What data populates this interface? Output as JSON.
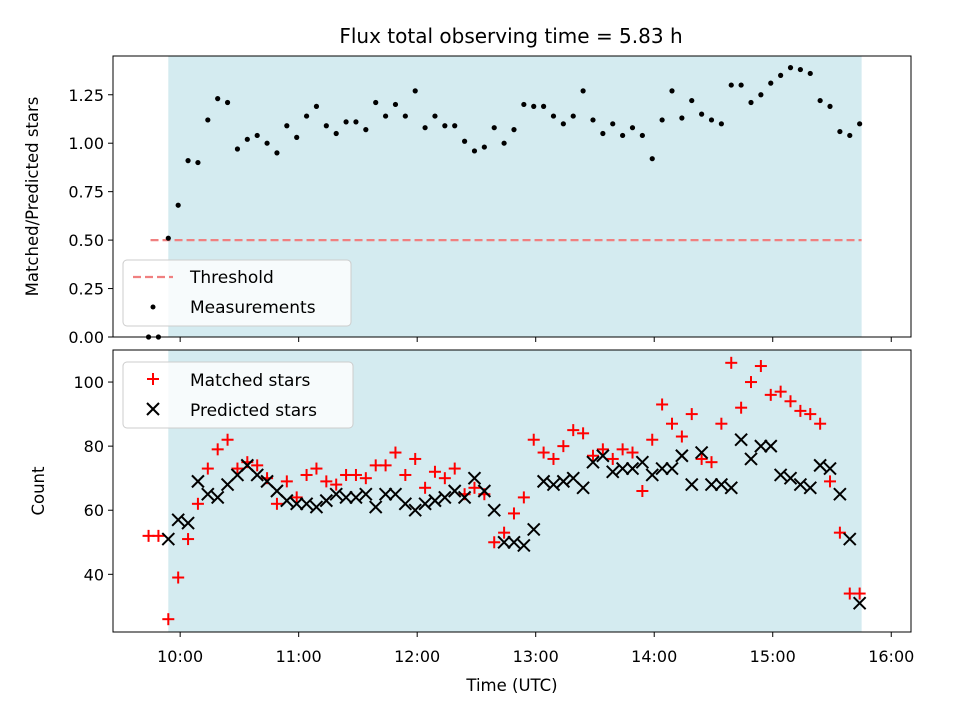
{
  "chart_data": [
    {
      "type": "scatter",
      "title": "Flux total observing time = 5.83 h",
      "xlabel": "",
      "ylabel": "Matched/Predicted stars",
      "xlim": [
        "09:26",
        "16:10"
      ],
      "ylim": [
        0,
        1.45
      ],
      "yticks": [
        "0.00",
        "0.25",
        "0.50",
        "0.75",
        "1.00",
        "1.25"
      ],
      "shaded_interval": [
        "09:54",
        "15:45"
      ],
      "shade_color": "#d4ebf0",
      "legend": [
        "Threshold",
        "Measurements"
      ],
      "legend_position": "lower-left",
      "threshold": {
        "name": "Threshold",
        "value": 0.5,
        "x": [
          "09:45",
          "15:45"
        ],
        "color": "#f08080"
      },
      "series": [
        {
          "name": "Measurements",
          "color": "#000000",
          "x": [
            "09:44",
            "09:49",
            "09:54",
            "09:59",
            "10:04",
            "10:09",
            "10:14",
            "10:19",
            "10:24",
            "10:29",
            "10:34",
            "10:39",
            "10:44",
            "10:49",
            "10:54",
            "10:59",
            "11:04",
            "11:09",
            "11:14",
            "11:19",
            "11:24",
            "11:29",
            "11:34",
            "11:39",
            "11:44",
            "11:49",
            "11:54",
            "11:59",
            "12:04",
            "12:09",
            "12:14",
            "12:19",
            "12:24",
            "12:29",
            "12:34",
            "12:39",
            "12:44",
            "12:49",
            "12:54",
            "12:59",
            "13:04",
            "13:09",
            "13:14",
            "13:19",
            "13:24",
            "13:29",
            "13:34",
            "13:39",
            "13:44",
            "13:49",
            "13:54",
            "13:59",
            "14:04",
            "14:09",
            "14:14",
            "14:19",
            "14:24",
            "14:29",
            "14:34",
            "14:39",
            "14:44",
            "14:49",
            "14:54",
            "14:59",
            "15:04",
            "15:09",
            "15:14",
            "15:19",
            "15:24",
            "15:29",
            "15:34",
            "15:39",
            "15:44"
          ],
          "y": [
            0.0,
            0.0,
            0.51,
            0.68,
            0.91,
            0.9,
            1.12,
            1.23,
            1.21,
            0.97,
            1.02,
            1.04,
            1.0,
            0.95,
            1.09,
            1.03,
            1.14,
            1.19,
            1.09,
            1.05,
            1.11,
            1.11,
            1.07,
            1.21,
            1.14,
            1.2,
            1.14,
            1.27,
            1.08,
            1.14,
            1.09,
            1.09,
            1.01,
            0.96,
            0.98,
            1.08,
            1.0,
            1.07,
            1.2,
            1.19,
            1.19,
            1.14,
            1.1,
            1.14,
            1.27,
            1.12,
            1.05,
            1.1,
            1.04,
            1.08,
            1.04,
            0.92,
            1.12,
            1.27,
            1.13,
            1.22,
            1.15,
            1.12,
            1.1,
            1.3,
            1.3,
            1.21,
            1.25,
            1.31,
            1.35,
            1.39,
            1.38,
            1.36,
            1.22,
            1.19,
            1.06,
            1.04,
            1.1
          ]
        }
      ]
    },
    {
      "type": "scatter",
      "title": "",
      "xlabel": "Time (UTC)",
      "ylabel": "Count",
      "xlim": [
        "09:26",
        "16:10"
      ],
      "ylim": [
        22,
        110
      ],
      "yticks": [
        "40",
        "60",
        "80",
        "100"
      ],
      "xticks": [
        "10:00",
        "11:00",
        "12:00",
        "13:00",
        "14:00",
        "15:00",
        "16:00"
      ],
      "shaded_interval": [
        "09:54",
        "15:45"
      ],
      "shade_color": "#d4ebf0",
      "legend": [
        "Matched stars",
        "Predicted stars"
      ],
      "legend_position": "top-left",
      "series": [
        {
          "name": "Matched stars",
          "marker": "plus",
          "color": "#ff0000",
          "x": [
            "09:44",
            "09:49",
            "09:54",
            "09:59",
            "10:04",
            "10:09",
            "10:14",
            "10:19",
            "10:24",
            "10:29",
            "10:34",
            "10:39",
            "10:44",
            "10:49",
            "10:54",
            "10:59",
            "11:04",
            "11:09",
            "11:14",
            "11:19",
            "11:24",
            "11:29",
            "11:34",
            "11:39",
            "11:44",
            "11:49",
            "11:54",
            "11:59",
            "12:04",
            "12:09",
            "12:14",
            "12:19",
            "12:24",
            "12:29",
            "12:34",
            "12:39",
            "12:44",
            "12:49",
            "12:54",
            "12:59",
            "13:04",
            "13:09",
            "13:14",
            "13:19",
            "13:24",
            "13:29",
            "13:34",
            "13:39",
            "13:44",
            "13:49",
            "13:54",
            "13:59",
            "14:04",
            "14:09",
            "14:14",
            "14:19",
            "14:24",
            "14:29",
            "14:34",
            "14:39",
            "14:44",
            "14:49",
            "14:54",
            "14:59",
            "15:04",
            "15:09",
            "15:14",
            "15:19",
            "15:24",
            "15:29",
            "15:34",
            "15:39",
            "15:44"
          ],
          "y": [
            52,
            52,
            26,
            39,
            51,
            62,
            73,
            79,
            82,
            73,
            75,
            74,
            70,
            62,
            69,
            64,
            71,
            73,
            69,
            68,
            71,
            71,
            70,
            74,
            74,
            78,
            71,
            76,
            67,
            72,
            70,
            73,
            65,
            67,
            65,
            50,
            53,
            59,
            64,
            82,
            78,
            76,
            80,
            85,
            84,
            77,
            79,
            76,
            79,
            78,
            66,
            82,
            93,
            87,
            83,
            90,
            76,
            75,
            87,
            106,
            92,
            100,
            105,
            96,
            97,
            94,
            91,
            90,
            87,
            69,
            53,
            34,
            34
          ]
        },
        {
          "name": "Predicted stars",
          "marker": "x",
          "color": "#000000",
          "x": [
            "09:54",
            "09:59",
            "10:04",
            "10:09",
            "10:14",
            "10:19",
            "10:24",
            "10:29",
            "10:34",
            "10:39",
            "10:44",
            "10:49",
            "10:54",
            "10:59",
            "11:04",
            "11:09",
            "11:14",
            "11:19",
            "11:24",
            "11:29",
            "11:34",
            "11:39",
            "11:44",
            "11:49",
            "11:54",
            "11:59",
            "12:04",
            "12:09",
            "12:14",
            "12:19",
            "12:24",
            "12:29",
            "12:34",
            "12:39",
            "12:44",
            "12:49",
            "12:54",
            "12:59",
            "13:04",
            "13:09",
            "13:14",
            "13:19",
            "13:24",
            "13:29",
            "13:34",
            "13:39",
            "13:44",
            "13:49",
            "13:54",
            "13:59",
            "14:04",
            "14:09",
            "14:14",
            "14:19",
            "14:24",
            "14:29",
            "14:34",
            "14:39",
            "14:44",
            "14:49",
            "14:54",
            "14:59",
            "15:04",
            "15:09",
            "15:14",
            "15:19",
            "15:24",
            "15:29",
            "15:34",
            "15:39",
            "15:44"
          ],
          "y": [
            51,
            57,
            56,
            69,
            65,
            64,
            68,
            71,
            74,
            71,
            69,
            66,
            63,
            62,
            62,
            61,
            63,
            65,
            64,
            64,
            65,
            61,
            65,
            65,
            62,
            60,
            62,
            63,
            64,
            66,
            64,
            70,
            66,
            60,
            50,
            50,
            49,
            54,
            69,
            68,
            69,
            70,
            67,
            75,
            77,
            72,
            73,
            73,
            75,
            71,
            73,
            73,
            77,
            68,
            78,
            68,
            68,
            67,
            82,
            76,
            80,
            80,
            71,
            70,
            68,
            67,
            74,
            73,
            65,
            51,
            31
          ]
        }
      ]
    }
  ]
}
